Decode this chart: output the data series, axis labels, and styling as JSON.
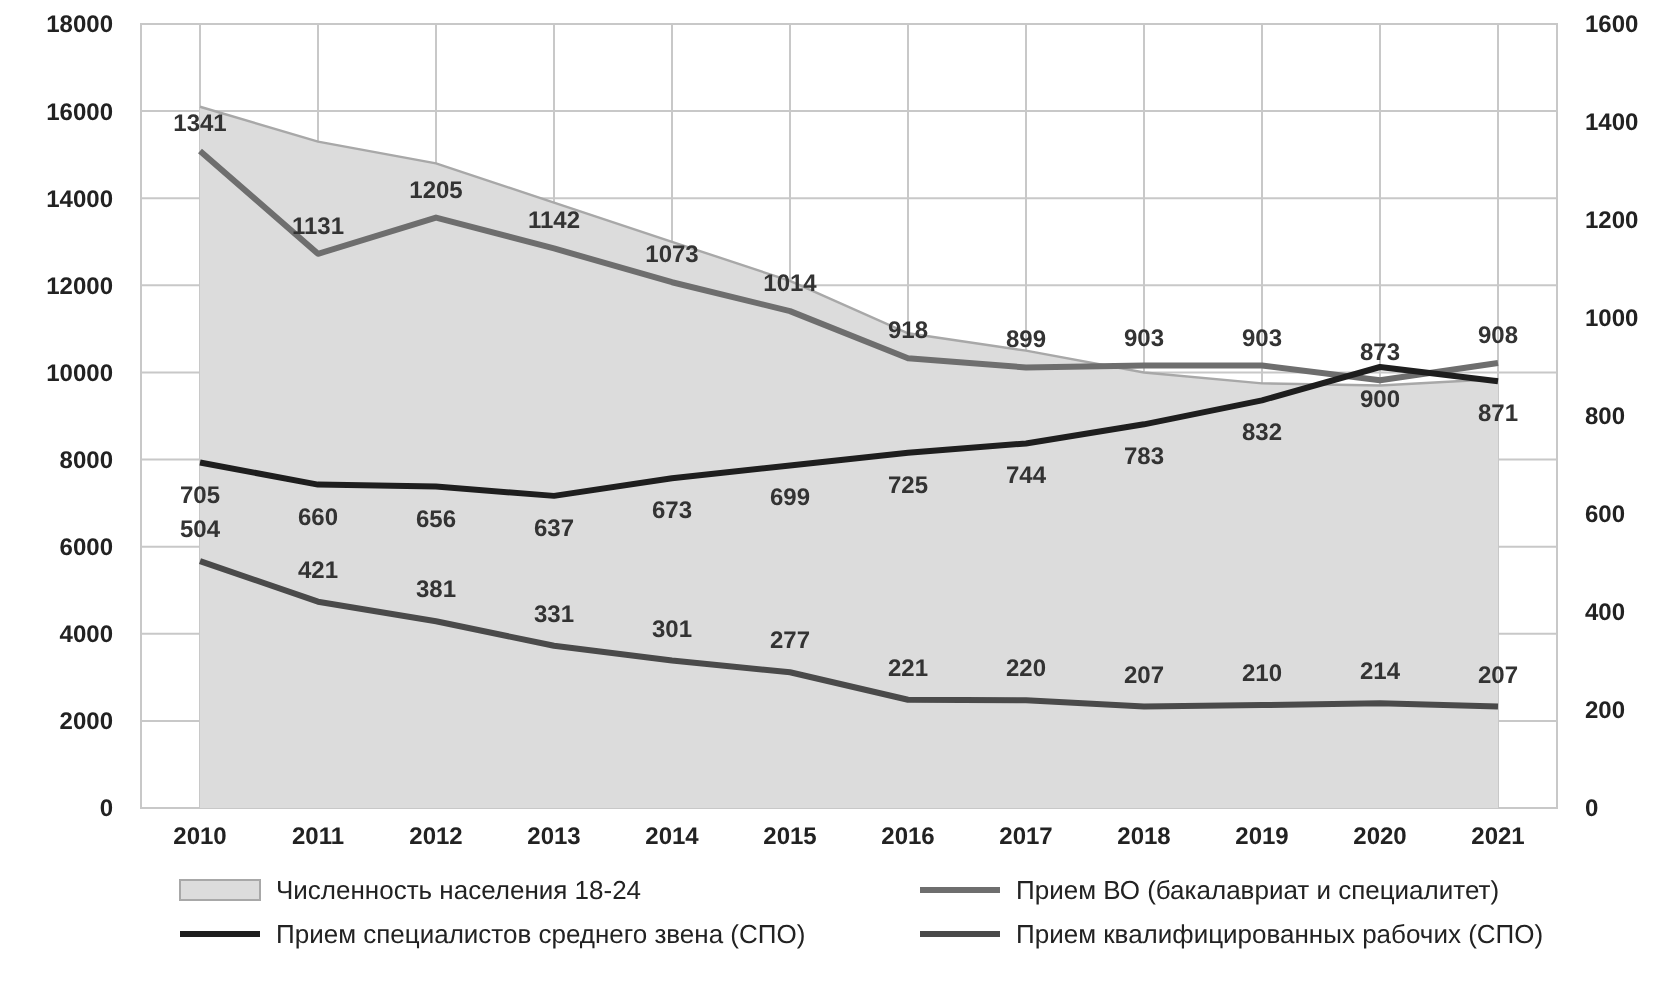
{
  "chart_data": {
    "type": "line",
    "categories": [
      "2010",
      "2011",
      "2012",
      "2013",
      "2014",
      "2015",
      "2016",
      "2017",
      "2018",
      "2019",
      "2020",
      "2021"
    ],
    "series": [
      {
        "name": "Численность населения 18-24",
        "type": "area",
        "color": "#dcdcdc",
        "values": [
          16100,
          15300,
          14800,
          13900,
          13000,
          12100,
          10900,
          10500,
          10000,
          9750,
          9700,
          9850
        ]
      },
      {
        "name": "Прием ВО (бакалавриат и специалитет)",
        "axis": "y2",
        "color": "#6e6e6e",
        "values": [
          1341,
          1131,
          1205,
          1142,
          1073,
          1014,
          918,
          899,
          903,
          903,
          873,
          908
        ],
        "value_labels": [
          "1341",
          "1131",
          "1205",
          "1142",
          "1073",
          "1014",
          "918",
          "899",
          "903",
          "903",
          "873",
          "908"
        ]
      },
      {
        "name": "Прием специалистов среднего звена (СПО)",
        "axis": "y2",
        "color": "#1e1e1e",
        "values": [
          705,
          660,
          656,
          637,
          673,
          699,
          725,
          744,
          783,
          832,
          900,
          871
        ],
        "value_labels": [
          "705",
          "660",
          "656",
          "637",
          "673",
          "699",
          "725",
          "744",
          "783",
          "832",
          "900",
          "871"
        ]
      },
      {
        "name": "Прием квалифицированных рабочих (СПО)",
        "axis": "y2",
        "color": "#4a4a4a",
        "values": [
          504,
          421,
          381,
          331,
          301,
          277,
          221,
          220,
          207,
          210,
          214,
          207
        ],
        "value_labels": [
          "504",
          "421",
          "381",
          "331",
          "301",
          "277",
          "221",
          "220",
          "207",
          "210",
          "214",
          "207"
        ]
      }
    ],
    "ylim": [
      0,
      18000
    ],
    "yticks": [
      0,
      2000,
      4000,
      6000,
      8000,
      10000,
      12000,
      14000,
      16000,
      18000
    ],
    "y2lim": [
      0,
      1600
    ],
    "y2ticks": [
      0,
      200,
      400,
      600,
      800,
      1000,
      1200,
      1400,
      1600
    ],
    "grid": true,
    "legend": "bottom"
  }
}
